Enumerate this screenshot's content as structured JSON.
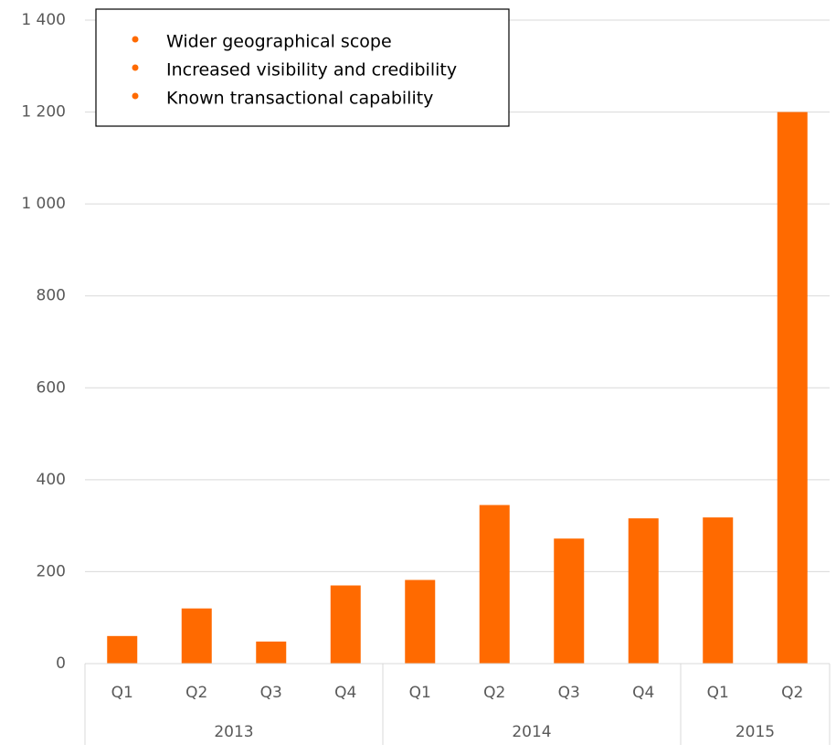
{
  "chart_data": {
    "type": "bar",
    "categories": [
      "Q1",
      "Q2",
      "Q3",
      "Q4",
      "Q1",
      "Q2",
      "Q3",
      "Q4",
      "Q1",
      "Q2"
    ],
    "category_groups": [
      "2013",
      "2013",
      "2013",
      "2013",
      "2014",
      "2014",
      "2014",
      "2014",
      "2015",
      "2015"
    ],
    "values": [
      60,
      120,
      48,
      170,
      182,
      345,
      272,
      316,
      318,
      1200
    ],
    "color": "#ff6a00",
    "ylim": [
      0,
      1400
    ],
    "yticks": [
      0,
      200,
      400,
      600,
      800,
      {
        "value": 1000,
        "label": "1 000"
      },
      {
        "value": 1200,
        "label": "1 200"
      },
      {
        "value": 1400,
        "label": "1 400"
      }
    ],
    "grid": true,
    "annotations": [
      "Wider geographical scope",
      "Increased visibility and credibility",
      "Known transactional capability"
    ],
    "annotation_bullet_color": "#ff6a00"
  }
}
